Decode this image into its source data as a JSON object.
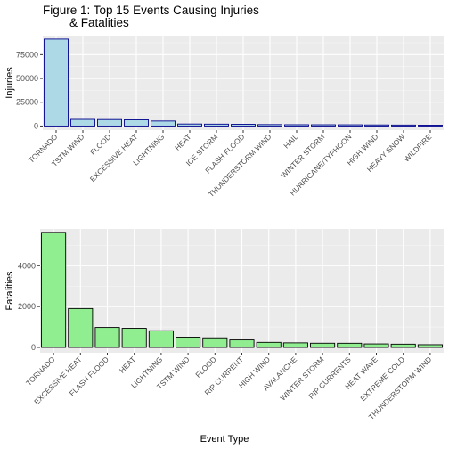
{
  "figure": {
    "title_line1": "Figure 1: Top 15 Events Causing Injuries",
    "title_line2": "        & Fatalities",
    "xlabel": "Event Type"
  },
  "chart_data": [
    {
      "type": "bar",
      "ylabel": "Injuries",
      "ylim": [
        0,
        95000
      ],
      "yticks": [
        0,
        25000,
        50000,
        75000
      ],
      "ytick_labels": [
        "0",
        "25000",
        "50000",
        "75000"
      ],
      "grid": true,
      "fill": "#add8e6",
      "stroke": "#00008b",
      "categories": [
        "TORNADO",
        "TSTM WIND",
        "FLOOD",
        "EXCESSIVE HEAT",
        "LIGHTNING",
        "HEAT",
        "ICE STORM",
        "FLASH FLOOD",
        "THUNDERSTORM WIND",
        "HAIL",
        "WINTER STORM",
        "HURRICANE/TYPHOON",
        "HIGH WIND",
        "HEAVY SNOW",
        "WILDFIRE"
      ],
      "values": [
        91346,
        6957,
        6789,
        6525,
        5230,
        2100,
        1975,
        1777,
        1488,
        1361,
        1321,
        1275,
        1137,
        1021,
        911
      ]
    },
    {
      "type": "bar",
      "ylabel": "Fatalities",
      "ylim": [
        0,
        5800
      ],
      "yticks": [
        0,
        2000,
        4000
      ],
      "ytick_labels": [
        "0",
        "2000",
        "4000"
      ],
      "grid": true,
      "fill": "#90ee90",
      "stroke": "#000000",
      "categories": [
        "TORNADO",
        "EXCESSIVE HEAT",
        "FLASH FLOOD",
        "HEAT",
        "LIGHTNING",
        "TSTM WIND",
        "FLOOD",
        "RIP CURRENT",
        "HIGH WIND",
        "AVALANCHE",
        "WINTER STORM",
        "RIP CURRENTS",
        "HEAT WAVE",
        "EXTREME COLD",
        "THUNDERSTORM WIND"
      ],
      "values": [
        5633,
        1903,
        978,
        937,
        816,
        504,
        470,
        368,
        248,
        224,
        206,
        204,
        172,
        160,
        133
      ]
    }
  ]
}
